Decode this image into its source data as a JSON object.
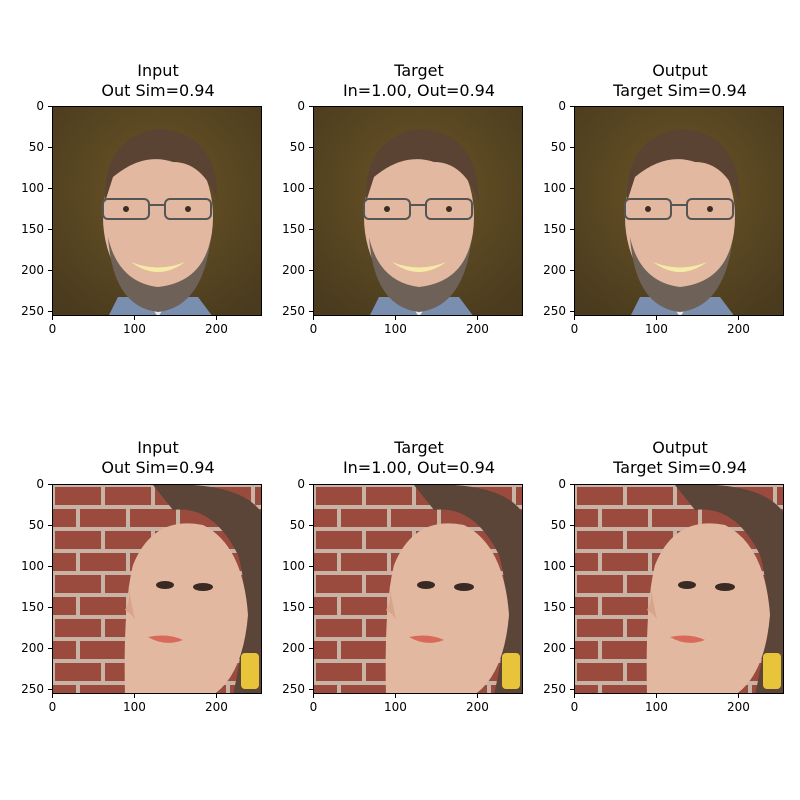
{
  "panels": [
    {
      "title_1": "Input",
      "title_2": "Out Sim=0.94",
      "subject": "man-with-glasses"
    },
    {
      "title_1": "Target",
      "title_2": "In=1.00, Out=0.94",
      "subject": "man-with-glasses"
    },
    {
      "title_1": "Output",
      "title_2": "Target Sim=0.94",
      "subject": "man-with-glasses"
    },
    {
      "title_1": "Input",
      "title_2": "Out Sim=0.94",
      "subject": "woman-brick-wall"
    },
    {
      "title_1": "Target",
      "title_2": "In=1.00, Out=0.94",
      "subject": "woman-brick-wall"
    },
    {
      "title_1": "Output",
      "title_2": "Target Sim=0.94",
      "subject": "woman-brick-wall"
    }
  ],
  "axis": {
    "y_ticks": [
      "0",
      "50",
      "100",
      "150",
      "200",
      "250"
    ],
    "x_ticks": [
      "0",
      "100",
      "200"
    ]
  },
  "colors": {
    "man_bg": "#4a3b1e",
    "skin": "#e2b9a0",
    "beard": "#6e6258",
    "hair_man": "#5a4332",
    "brick": "#9b4b3e",
    "mortar": "#c9b3a4",
    "hair_woman": "#5b4538",
    "earring": "#e8c43a"
  }
}
